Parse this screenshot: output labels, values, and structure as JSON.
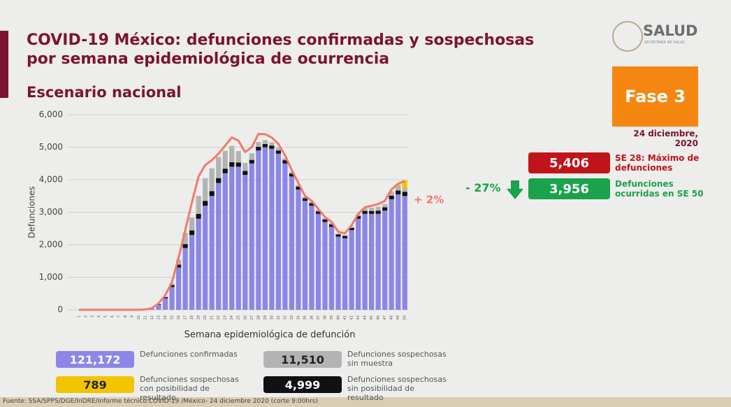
{
  "chart_data": {
    "type": "stacked_bar",
    "title": [
      "COVID-19 México: defunciones confirmadas y sospechosas",
      "por semana epidemiológica de ocurrencia"
    ],
    "subtitle": "Escenario nacional",
    "x_label": "Semana epidemiológica de defunción",
    "y_label": "Defunciones",
    "categories": [
      "1",
      "2",
      "3",
      "4",
      "5",
      "6",
      "7",
      "8",
      "9",
      "10",
      "11",
      "12",
      "13",
      "14",
      "15",
      "16",
      "17",
      "18",
      "19",
      "20",
      "21",
      "22",
      "23",
      "24",
      "25",
      "26",
      "27",
      "28",
      "29",
      "30",
      "31",
      "32",
      "33",
      "34",
      "35",
      "36",
      "37",
      "38",
      "39",
      "40",
      "41",
      "42",
      "43",
      "44",
      "45",
      "46",
      "47",
      "48",
      "49",
      "50"
    ],
    "ylim": [
      0,
      6000
    ],
    "yticks": [
      0,
      {
        "value": 1000,
        "label": "1,000"
      },
      {
        "value": 2000,
        "label": "2,000"
      },
      {
        "value": 3000,
        "label": "3,000"
      },
      {
        "value": 4000,
        "label": "4,000"
      },
      {
        "value": 5000,
        "label": "5,000"
      },
      {
        "value": 6000,
        "label": "6,000"
      }
    ],
    "series": [
      {
        "name": "Defunciones confirmadas",
        "color": "#8b86e8",
        "total": 121172,
        "total_label": "121,172",
        "values": [
          0,
          0,
          0,
          0,
          0,
          0,
          0,
          0,
          0,
          0,
          5,
          30,
          150,
          350,
          700,
          1300,
          1900,
          2300,
          2800,
          3200,
          3500,
          3900,
          4200,
          4400,
          4400,
          4150,
          4500,
          4900,
          5000,
          4950,
          4800,
          4500,
          4100,
          3700,
          3350,
          3200,
          2950,
          2700,
          2550,
          2250,
          2200,
          2450,
          2800,
          2950,
          2950,
          2950,
          3050,
          3400,
          3550,
          3500
        ]
      },
      {
        "name": "Defunciones sospechosas sin posibilidad de resultado",
        "color": "#111111",
        "total": 4999,
        "total_label": "4,999",
        "values": [
          0,
          0,
          0,
          0,
          0,
          0,
          0,
          0,
          0,
          0,
          0,
          5,
          20,
          40,
          60,
          90,
          120,
          140,
          150,
          150,
          150,
          150,
          140,
          140,
          130,
          120,
          110,
          110,
          100,
          100,
          100,
          100,
          90,
          90,
          80,
          80,
          80,
          80,
          80,
          70,
          70,
          70,
          80,
          90,
          90,
          100,
          100,
          110,
          120,
          130
        ]
      },
      {
        "name": "Defunciones sospechosas sin muestra",
        "color": "#b3b3b3",
        "total": 11510,
        "total_label": "11,510",
        "values": [
          0,
          0,
          0,
          0,
          0,
          0,
          0,
          0,
          0,
          0,
          0,
          5,
          10,
          20,
          50,
          150,
          350,
          400,
          550,
          700,
          700,
          650,
          550,
          500,
          350,
          250,
          200,
          150,
          120,
          100,
          80,
          60,
          50,
          50,
          40,
          40,
          40,
          40,
          30,
          30,
          30,
          40,
          60,
          80,
          100,
          120,
          100,
          120,
          130,
          100
        ]
      },
      {
        "name": "Defunciones sospechosas con posibilidad de resultado",
        "color": "#f2c400",
        "total": 789,
        "total_label": "789",
        "values": [
          0,
          0,
          0,
          0,
          0,
          0,
          0,
          0,
          0,
          0,
          0,
          0,
          0,
          0,
          0,
          0,
          0,
          0,
          0,
          0,
          0,
          0,
          0,
          0,
          0,
          0,
          0,
          0,
          0,
          0,
          0,
          0,
          0,
          0,
          0,
          0,
          0,
          0,
          0,
          0,
          0,
          0,
          0,
          0,
          0,
          0,
          0,
          10,
          50,
          250
        ]
      }
    ],
    "line": {
      "color": "#f07a6a",
      "values": [
        0,
        0,
        0,
        0,
        0,
        0,
        0,
        0,
        0,
        0,
        10,
        50,
        200,
        450,
        850,
        1600,
        2450,
        3300,
        4100,
        4450,
        4600,
        4800,
        5050,
        5300,
        5200,
        4850,
        5000,
        5406,
        5400,
        5300,
        5100,
        4750,
        4300,
        3900,
        3500,
        3350,
        3100,
        2850,
        2700,
        2400,
        2350,
        2600,
        2950,
        3150,
        3200,
        3250,
        3350,
        3700,
        3880,
        3956
      ]
    },
    "annotations": [
      {
        "value": 5406,
        "label": "5,406",
        "text": "SE 28: Máximo de defunciones",
        "color": "#c0141b"
      },
      {
        "value": 3956,
        "label": "3,956",
        "text": "Defunciones ocurridas en SE 50",
        "color": "#1aa34a",
        "change": "- 27%"
      }
    ],
    "line_change": "+ 2%"
  },
  "slide": {
    "logo": "SALUD",
    "logo_sub": "SECRETARÍA DE SALUD",
    "phase": "Fase 3",
    "date": "24 diciembre, 2020",
    "source": "Fuente: SSA/SPPS/DGE/InDRE/Informe técnico.COVID-19 /México- 24 diciembre 2020 (corte 9:00hrs)"
  }
}
